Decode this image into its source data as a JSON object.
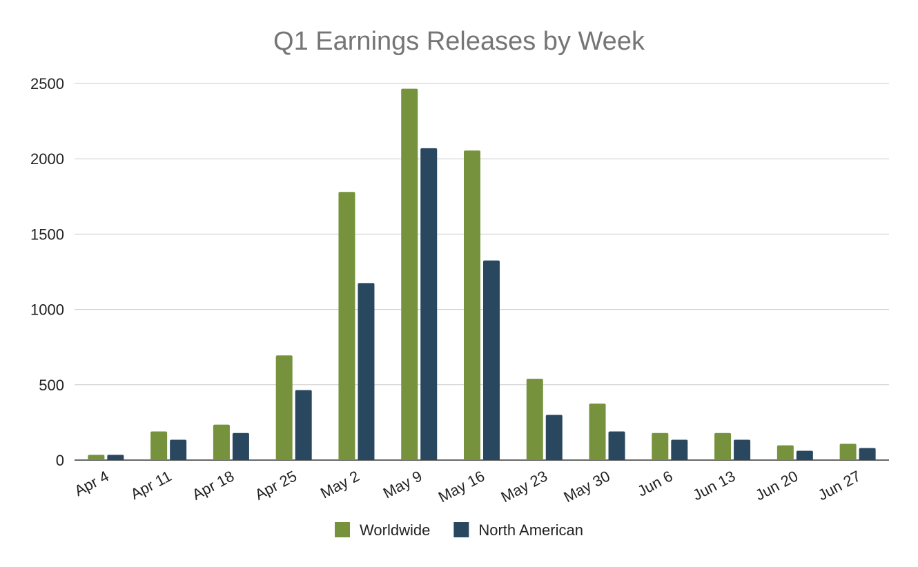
{
  "chart_data": {
    "type": "bar",
    "title": "Q1 Earnings Releases by Week",
    "xlabel": "",
    "ylabel": "",
    "categories": [
      "Apr 4",
      "Apr 11",
      "Apr 18",
      "Apr 25",
      "May 2",
      "May 9",
      "May 16",
      "May 23",
      "May 30",
      "Jun 6",
      "Jun 13",
      "Jun 20",
      "Jun 27"
    ],
    "series": [
      {
        "name": "Worldwide",
        "color": "#76923c",
        "values": [
          35,
          190,
          235,
          695,
          1780,
          2465,
          2055,
          540,
          375,
          180,
          180,
          98,
          108
        ]
      },
      {
        "name": "North American",
        "color": "#29485f",
        "values": [
          35,
          135,
          180,
          465,
          1175,
          2070,
          1325,
          300,
          190,
          135,
          135,
          62,
          80
        ]
      }
    ],
    "ylim": [
      0,
      2500
    ],
    "yticks": [
      0,
      500,
      1000,
      1500,
      2000,
      2500
    ],
    "grid": true,
    "legend_position": "bottom-center"
  }
}
